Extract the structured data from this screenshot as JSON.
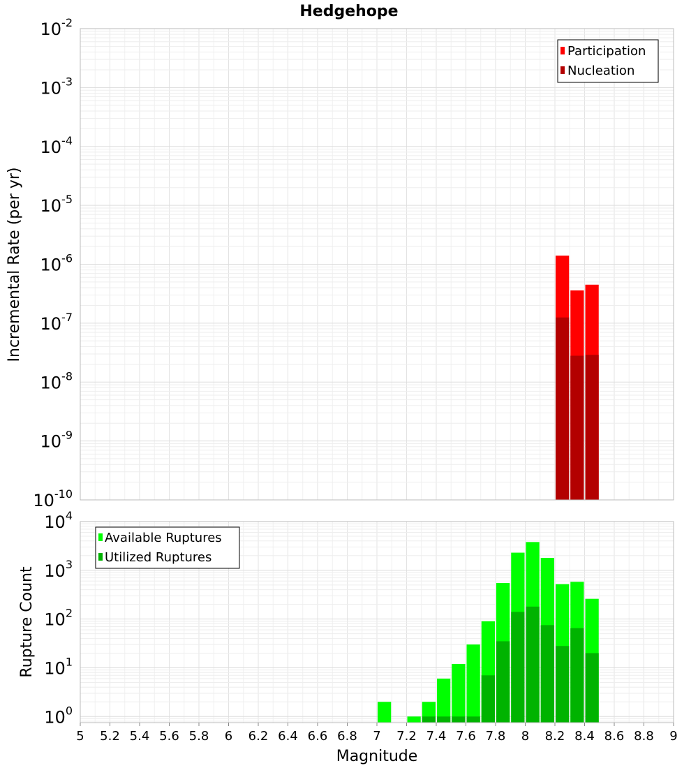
{
  "chart_data": [
    {
      "type": "bar",
      "title": "Hedgehope",
      "xlabel": "",
      "ylabel": "Incremental Rate (per yr)",
      "yscale": "log",
      "ylim": [
        1e-10,
        0.01
      ],
      "xlim": [
        5,
        9
      ],
      "bar_width": 0.1,
      "grid": true,
      "legend_position": "top-right",
      "series": [
        {
          "name": "Participation",
          "color": "#ff0000",
          "x": [
            8.25,
            8.35,
            8.45
          ],
          "values": [
            1.4e-06,
            3.6e-07,
            4.5e-07
          ]
        },
        {
          "name": "Nucleation",
          "color": "#b30000",
          "x": [
            8.25,
            8.35,
            8.45
          ],
          "values": [
            1.25e-07,
            2.8e-08,
            2.9e-08
          ]
        }
      ]
    },
    {
      "type": "bar",
      "title": "",
      "xlabel": "Magnitude",
      "ylabel": "Rupture Count",
      "yscale": "log",
      "ylim": [
        0.75,
        10000
      ],
      "xlim": [
        5,
        9
      ],
      "bar_width": 0.1,
      "grid": true,
      "legend_position": "top-left",
      "x_ticks": [
        "5",
        "5.2",
        "5.4",
        "5.6",
        "5.8",
        "6",
        "6.2",
        "6.4",
        "6.6",
        "6.8",
        "7",
        "7.2",
        "7.4",
        "7.6",
        "7.8",
        "8",
        "8.2",
        "8.4",
        "8.6",
        "8.8",
        "9"
      ],
      "series": [
        {
          "name": "Available Ruptures",
          "color": "#00ff00",
          "x": [
            7.05,
            7.25,
            7.35,
            7.45,
            7.55,
            7.65,
            7.75,
            7.85,
            7.95,
            8.05,
            8.15,
            8.25,
            8.35,
            8.45
          ],
          "values": [
            2,
            1,
            2,
            6,
            12,
            30,
            90,
            550,
            2300,
            3800,
            1800,
            520,
            580,
            260
          ]
        },
        {
          "name": "Utilized Ruptures",
          "color": "#00b300",
          "x": [
            7.35,
            7.45,
            7.55,
            7.65,
            7.75,
            7.85,
            7.95,
            8.05,
            8.15,
            8.25,
            8.35,
            8.45
          ],
          "values": [
            1,
            1,
            1,
            1,
            7,
            35,
            140,
            180,
            75,
            28,
            65,
            20
          ]
        }
      ]
    }
  ]
}
